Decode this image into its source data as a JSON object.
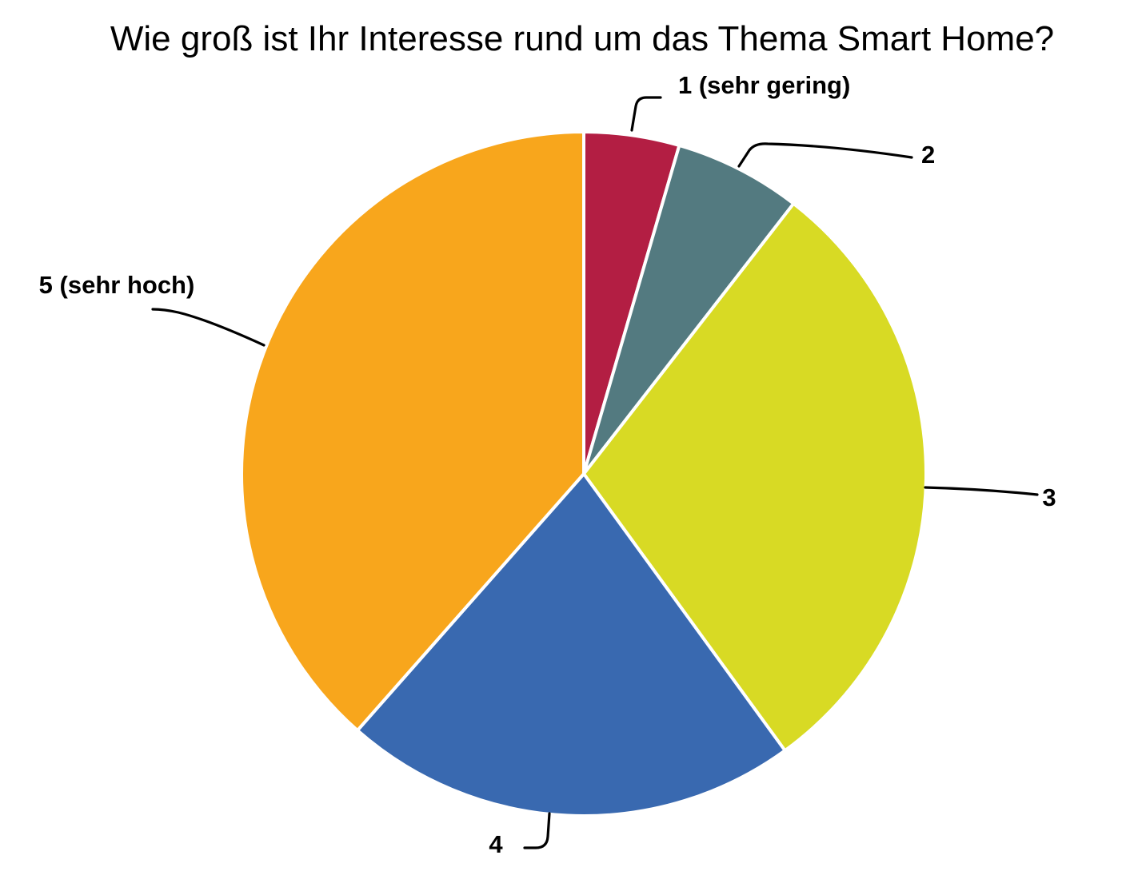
{
  "chart_data": {
    "type": "pie",
    "title": "Wie groß ist Ihr Interesse rund um das Thema Smart Home?",
    "categories": [
      "1 (sehr gering)",
      "2",
      "3",
      "4",
      "5 (sehr hoch)"
    ],
    "values": [
      4.5,
      6.0,
      29.5,
      21.5,
      38.5
    ],
    "colors": [
      "#B31E43",
      "#537A80",
      "#D8DA24",
      "#3969B0",
      "#F8A61C"
    ],
    "legend": "none",
    "labels_placement": "outside-with-leader-lines"
  }
}
